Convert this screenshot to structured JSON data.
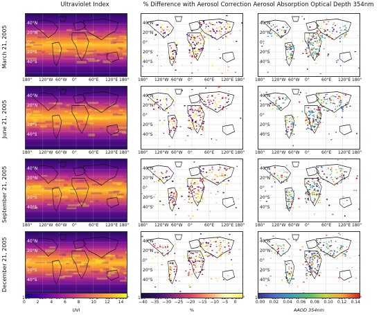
{
  "columns": [
    {
      "title": "Ultraviolet Index"
    },
    {
      "title": "% Difference with Aerosol Correction"
    },
    {
      "title": "Aerosol Absorption Optical Depth 354nm"
    }
  ],
  "rows": [
    {
      "label": "March 21, 2005"
    },
    {
      "label": "June 21, 2005"
    },
    {
      "label": "September 21, 2005"
    },
    {
      "label": "December 21, 2005"
    }
  ],
  "lat_ticks": [
    "40°N",
    "20°N",
    "0°",
    "20°S",
    "40°S"
  ],
  "lon_ticks": [
    "180°",
    "120°W",
    "60°W",
    "0°",
    "60°E",
    "120°E",
    "180°"
  ],
  "colorbars": [
    {
      "ticks": [
        "0",
        "2",
        "4",
        "6",
        "8",
        "10",
        "12",
        "14"
      ],
      "label": "UVI",
      "colormap": "plasma",
      "range": [
        0,
        15
      ]
    },
    {
      "ticks": [
        "−40",
        "−35",
        "−30",
        "−25",
        "−20",
        "−15",
        "−10",
        "−5",
        "0"
      ],
      "label": "%",
      "colormap": "viridis-like diverging",
      "range": [
        -42,
        0
      ]
    },
    {
      "ticks": [
        "0.00",
        "0.02",
        "0.04",
        "0.06",
        "0.08",
        "0.10",
        "0.12",
        "0.14"
      ],
      "label": "AAOD 354nm",
      "colormap": "viridis-rainbow",
      "range": [
        0,
        0.15
      ]
    }
  ],
  "colors": {
    "uv_low": "#2a0a66",
    "uv_mid": "#b12a90",
    "uv_high": "#fdc328",
    "diff_low": "#1a0b3a",
    "diff_high": "#f9f06b",
    "aaod_low": "#3b2f8f",
    "aaod_high": "#d62222"
  }
}
